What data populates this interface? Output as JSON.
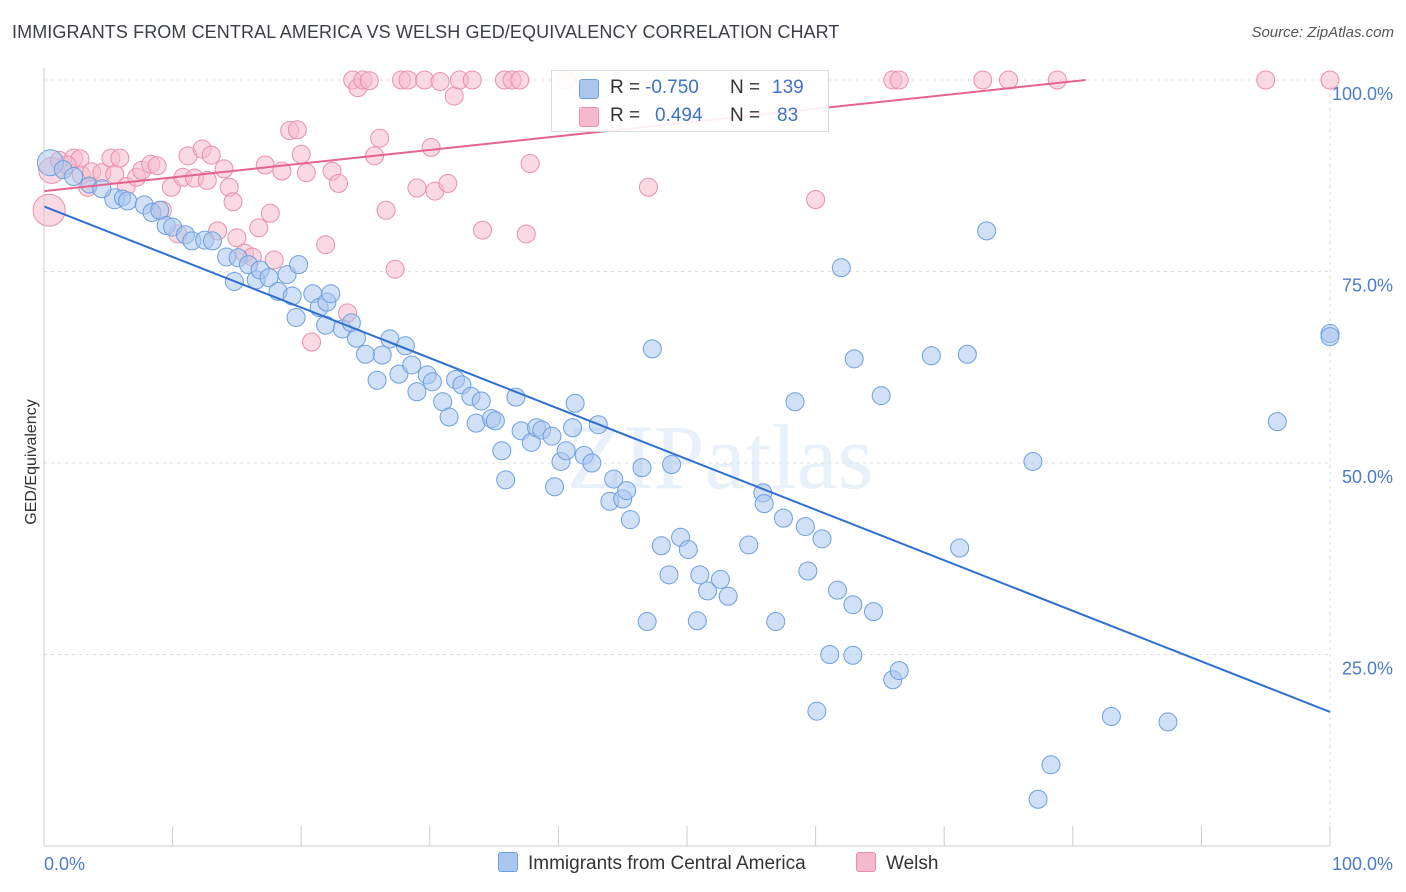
{
  "title": "IMMIGRANTS FROM CENTRAL AMERICA VS WELSH GED/EQUIVALENCY CORRELATION CHART",
  "source": "Source: ZipAtlas.com",
  "watermark": "ZIPatlas",
  "legend": {
    "r_label": "R =",
    "n_label": "N =",
    "rows": [
      {
        "r": "-0.750",
        "n": "139"
      },
      {
        "r": "0.494",
        "n": "83"
      }
    ]
  },
  "colors": {
    "blue_fill": "#a9c6ef",
    "blue_stroke": "#6d9fe0",
    "blue_line": "#2e6fd1",
    "pink_fill": "#f6b9cb",
    "pink_stroke": "#ea8fab",
    "pink_line": "#e5638e",
    "tick_label": "#4a7cc9",
    "grid": "#dddddd"
  },
  "chart_data": {
    "type": "scatter",
    "title": "IMMIGRANTS FROM CENTRAL AMERICA VS WELSH GED/EQUIVALENCY CORRELATION CHART",
    "xlabel": "",
    "ylabel": "GED/Equivalency",
    "xlim": [
      0,
      100
    ],
    "ylim": [
      0,
      100
    ],
    "x_tick_labels": [
      "0.0%",
      "100.0%"
    ],
    "y_tick_labels": [
      "25.0%",
      "50.0%",
      "75.0%",
      "100.0%"
    ],
    "y_ticks": [
      25,
      50,
      75,
      100
    ],
    "grid": true,
    "legend_position": "bottom",
    "series": [
      {
        "name": "Immigrants from Central America",
        "color": "#a9c6ef",
        "trend": {
          "x": [
            0,
            100
          ],
          "y": [
            83.5,
            17.5
          ]
        },
        "points": [
          [
            0.5,
            89.2,
            13
          ],
          [
            1.5,
            88.3,
            9
          ],
          [
            2.3,
            87.4,
            9
          ],
          [
            3.5,
            86.3,
            8
          ],
          [
            5.5,
            84.5,
            10
          ],
          [
            4.5,
            85.8,
            9
          ],
          [
            6.1,
            84.6,
            8
          ],
          [
            6.5,
            84.2,
            9
          ],
          [
            7.8,
            83.7,
            9
          ],
          [
            8.4,
            82.7,
            9
          ],
          [
            9.0,
            83.0,
            9
          ],
          [
            9.5,
            81.0,
            9
          ],
          [
            10.0,
            80.8,
            9
          ],
          [
            11.0,
            79.8,
            9
          ],
          [
            11.5,
            79.0,
            9
          ],
          [
            12.5,
            79.1,
            9
          ],
          [
            13.1,
            79.0,
            9
          ],
          [
            14.2,
            76.9,
            9
          ],
          [
            14.8,
            73.7,
            9
          ],
          [
            15.1,
            76.8,
            9
          ],
          [
            15.9,
            75.9,
            9
          ],
          [
            16.5,
            73.9,
            9
          ],
          [
            16.8,
            75.2,
            9
          ],
          [
            17.5,
            74.2,
            9
          ],
          [
            18.2,
            72.4,
            9
          ],
          [
            18.9,
            74.6,
            9
          ],
          [
            19.3,
            71.8,
            9
          ],
          [
            19.6,
            69.0,
            9
          ],
          [
            19.8,
            75.9,
            9
          ],
          [
            20.9,
            72.1,
            9
          ],
          [
            21.4,
            70.3,
            9
          ],
          [
            21.9,
            68.0,
            9
          ],
          [
            22.0,
            71.0,
            9
          ],
          [
            22.3,
            72.1,
            9
          ],
          [
            23.2,
            67.5,
            9
          ],
          [
            23.9,
            68.3,
            9
          ],
          [
            24.3,
            66.3,
            9
          ],
          [
            25.0,
            64.2,
            9
          ],
          [
            25.9,
            60.8,
            9
          ],
          [
            26.3,
            64.1,
            9
          ],
          [
            26.9,
            66.2,
            9
          ],
          [
            27.6,
            61.6,
            9
          ],
          [
            28.1,
            65.3,
            9
          ],
          [
            28.6,
            62.8,
            9
          ],
          [
            29.0,
            59.3,
            9
          ],
          [
            29.8,
            61.5,
            9
          ],
          [
            30.2,
            60.6,
            9
          ],
          [
            31.0,
            58.0,
            9
          ],
          [
            31.5,
            56.0,
            9
          ],
          [
            32.0,
            60.9,
            9
          ],
          [
            32.5,
            60.2,
            9
          ],
          [
            33.2,
            58.7,
            9
          ],
          [
            33.6,
            55.2,
            9
          ],
          [
            34.0,
            58.1,
            9
          ],
          [
            34.8,
            55.8,
            9
          ],
          [
            35.1,
            55.5,
            9
          ],
          [
            35.6,
            51.6,
            9
          ],
          [
            35.9,
            47.8,
            9
          ],
          [
            36.7,
            58.6,
            9
          ],
          [
            37.1,
            54.2,
            9
          ],
          [
            37.9,
            52.7,
            9
          ],
          [
            38.3,
            54.6,
            9
          ],
          [
            38.7,
            54.3,
            9
          ],
          [
            39.5,
            53.5,
            9
          ],
          [
            39.7,
            46.9,
            9
          ],
          [
            40.2,
            50.2,
            9
          ],
          [
            40.6,
            51.6,
            9
          ],
          [
            41.1,
            54.6,
            9
          ],
          [
            41.3,
            57.8,
            9
          ],
          [
            42.0,
            51.0,
            9
          ],
          [
            42.6,
            50.0,
            9
          ],
          [
            43.1,
            55.0,
            9
          ],
          [
            44.0,
            45.0,
            9
          ],
          [
            44.3,
            47.9,
            9
          ],
          [
            45.0,
            45.3,
            9
          ],
          [
            45.3,
            46.4,
            9
          ],
          [
            45.6,
            42.6,
            9
          ],
          [
            46.5,
            49.4,
            9
          ],
          [
            46.9,
            29.3,
            9
          ],
          [
            47.3,
            64.9,
            9
          ],
          [
            48.0,
            39.2,
            9
          ],
          [
            48.6,
            35.4,
            9
          ],
          [
            48.8,
            49.8,
            9
          ],
          [
            49.5,
            40.3,
            9
          ],
          [
            50.1,
            38.7,
            9
          ],
          [
            50.8,
            29.4,
            9
          ],
          [
            51.0,
            35.4,
            9
          ],
          [
            51.6,
            33.3,
            9
          ],
          [
            52.6,
            34.8,
            9
          ],
          [
            53.2,
            32.6,
            9
          ],
          [
            54.8,
            39.3,
            9
          ],
          [
            55.9,
            46.1,
            9
          ],
          [
            56.0,
            44.7,
            9
          ],
          [
            56.9,
            29.3,
            9
          ],
          [
            57.5,
            42.8,
            9
          ],
          [
            58.4,
            58.0,
            9
          ],
          [
            59.2,
            41.7,
            9
          ],
          [
            59.4,
            35.9,
            9
          ],
          [
            60.1,
            17.6,
            9
          ],
          [
            60.5,
            40.1,
            9
          ],
          [
            61.1,
            25.0,
            9
          ],
          [
            61.7,
            33.4,
            9
          ],
          [
            62.9,
            31.5,
            9
          ],
          [
            62.9,
            24.9,
            9
          ],
          [
            63.0,
            63.6,
            9
          ],
          [
            64.5,
            30.6,
            9
          ],
          [
            65.1,
            58.8,
            9
          ],
          [
            66.0,
            21.7,
            9
          ],
          [
            66.5,
            22.9,
            9
          ],
          [
            69.0,
            64.0,
            9
          ],
          [
            71.2,
            38.9,
            9
          ],
          [
            71.8,
            64.2,
            9
          ],
          [
            73.3,
            80.3,
            9
          ],
          [
            76.9,
            50.2,
            9
          ],
          [
            77.3,
            6.1,
            9
          ],
          [
            78.3,
            10.6,
            9
          ],
          [
            83.0,
            16.9,
            9
          ],
          [
            87.4,
            16.2,
            9
          ],
          [
            95.9,
            55.4,
            9
          ],
          [
            100.0,
            66.9,
            9
          ],
          [
            62.0,
            75.5,
            9
          ],
          [
            100.0,
            66.5,
            9
          ]
        ]
      },
      {
        "name": "Welsh",
        "color": "#f6b9cb",
        "trend": {
          "x": [
            0,
            81
          ],
          "y": [
            85.5,
            100
          ]
        },
        "points": [
          [
            0.4,
            83.0,
            16
          ],
          [
            0.6,
            88.2,
            13
          ],
          [
            1.2,
            89.5,
            9
          ],
          [
            2.3,
            89.8,
            9
          ],
          [
            2.8,
            89.7,
            9
          ],
          [
            1.8,
            88.9,
            9
          ],
          [
            2.9,
            87.6,
            9
          ],
          [
            3.7,
            88.0,
            9
          ],
          [
            3.4,
            86.0,
            9
          ],
          [
            4.5,
            87.9,
            9
          ],
          [
            5.2,
            89.8,
            9
          ],
          [
            5.5,
            87.7,
            9
          ],
          [
            5.9,
            89.8,
            9
          ],
          [
            6.4,
            86.1,
            9
          ],
          [
            7.2,
            87.3,
            9
          ],
          [
            7.6,
            88.2,
            9
          ],
          [
            8.3,
            89.0,
            9
          ],
          [
            8.8,
            88.8,
            9
          ],
          [
            9.2,
            83.0,
            9
          ],
          [
            9.9,
            86.0,
            9
          ],
          [
            10.4,
            79.9,
            9
          ],
          [
            10.8,
            87.3,
            9
          ],
          [
            11.2,
            90.1,
            9
          ],
          [
            11.7,
            87.2,
            9
          ],
          [
            12.3,
            91.0,
            9
          ],
          [
            12.7,
            86.9,
            9
          ],
          [
            13.0,
            90.2,
            9
          ],
          [
            13.5,
            80.3,
            9
          ],
          [
            14.0,
            88.4,
            9
          ],
          [
            14.4,
            86.0,
            9
          ],
          [
            14.7,
            84.1,
            9
          ],
          [
            15.0,
            79.4,
            9
          ],
          [
            15.6,
            77.4,
            9
          ],
          [
            16.2,
            76.9,
            9
          ],
          [
            16.7,
            80.7,
            9
          ],
          [
            17.2,
            88.9,
            9
          ],
          [
            17.6,
            82.6,
            9
          ],
          [
            17.9,
            76.5,
            9
          ],
          [
            18.5,
            88.1,
            9
          ],
          [
            19.1,
            93.4,
            9
          ],
          [
            19.7,
            93.5,
            9
          ],
          [
            20.0,
            90.3,
            9
          ],
          [
            20.4,
            87.9,
            9
          ],
          [
            20.8,
            65.8,
            9
          ],
          [
            21.9,
            78.5,
            9
          ],
          [
            22.4,
            88.1,
            9
          ],
          [
            22.9,
            86.5,
            9
          ],
          [
            23.6,
            69.6,
            9
          ],
          [
            24.0,
            100.0,
            9
          ],
          [
            24.4,
            99.0,
            9
          ],
          [
            24.8,
            100.0,
            9
          ],
          [
            25.3,
            99.9,
            9
          ],
          [
            25.7,
            90.1,
            9
          ],
          [
            26.1,
            92.4,
            9
          ],
          [
            26.6,
            83.0,
            9
          ],
          [
            27.3,
            75.3,
            9
          ],
          [
            27.8,
            100.0,
            9
          ],
          [
            28.3,
            100.0,
            9
          ],
          [
            29.0,
            85.9,
            9
          ],
          [
            29.6,
            100.0,
            9
          ],
          [
            30.1,
            91.2,
            9
          ],
          [
            30.4,
            85.5,
            9
          ],
          [
            30.8,
            99.8,
            9
          ],
          [
            31.4,
            86.5,
            9
          ],
          [
            31.9,
            97.9,
            9
          ],
          [
            32.3,
            100.0,
            9
          ],
          [
            33.3,
            100.0,
            9
          ],
          [
            34.1,
            80.4,
            9
          ],
          [
            35.8,
            100.0,
            9
          ],
          [
            36.4,
            100.0,
            9
          ],
          [
            37.0,
            100.0,
            9
          ],
          [
            37.5,
            79.9,
            9
          ],
          [
            37.8,
            89.1,
            9
          ],
          [
            40.6,
            100.0,
            9
          ],
          [
            47.0,
            86.0,
            9
          ],
          [
            60.0,
            84.4,
            9
          ],
          [
            66.0,
            100.0,
            9
          ],
          [
            66.5,
            100.0,
            9
          ],
          [
            73.0,
            100.0,
            9
          ],
          [
            75.0,
            100.0,
            9
          ],
          [
            78.8,
            100.0,
            9
          ],
          [
            95.0,
            100.0,
            9
          ],
          [
            100.0,
            100.0,
            9
          ]
        ]
      }
    ]
  }
}
